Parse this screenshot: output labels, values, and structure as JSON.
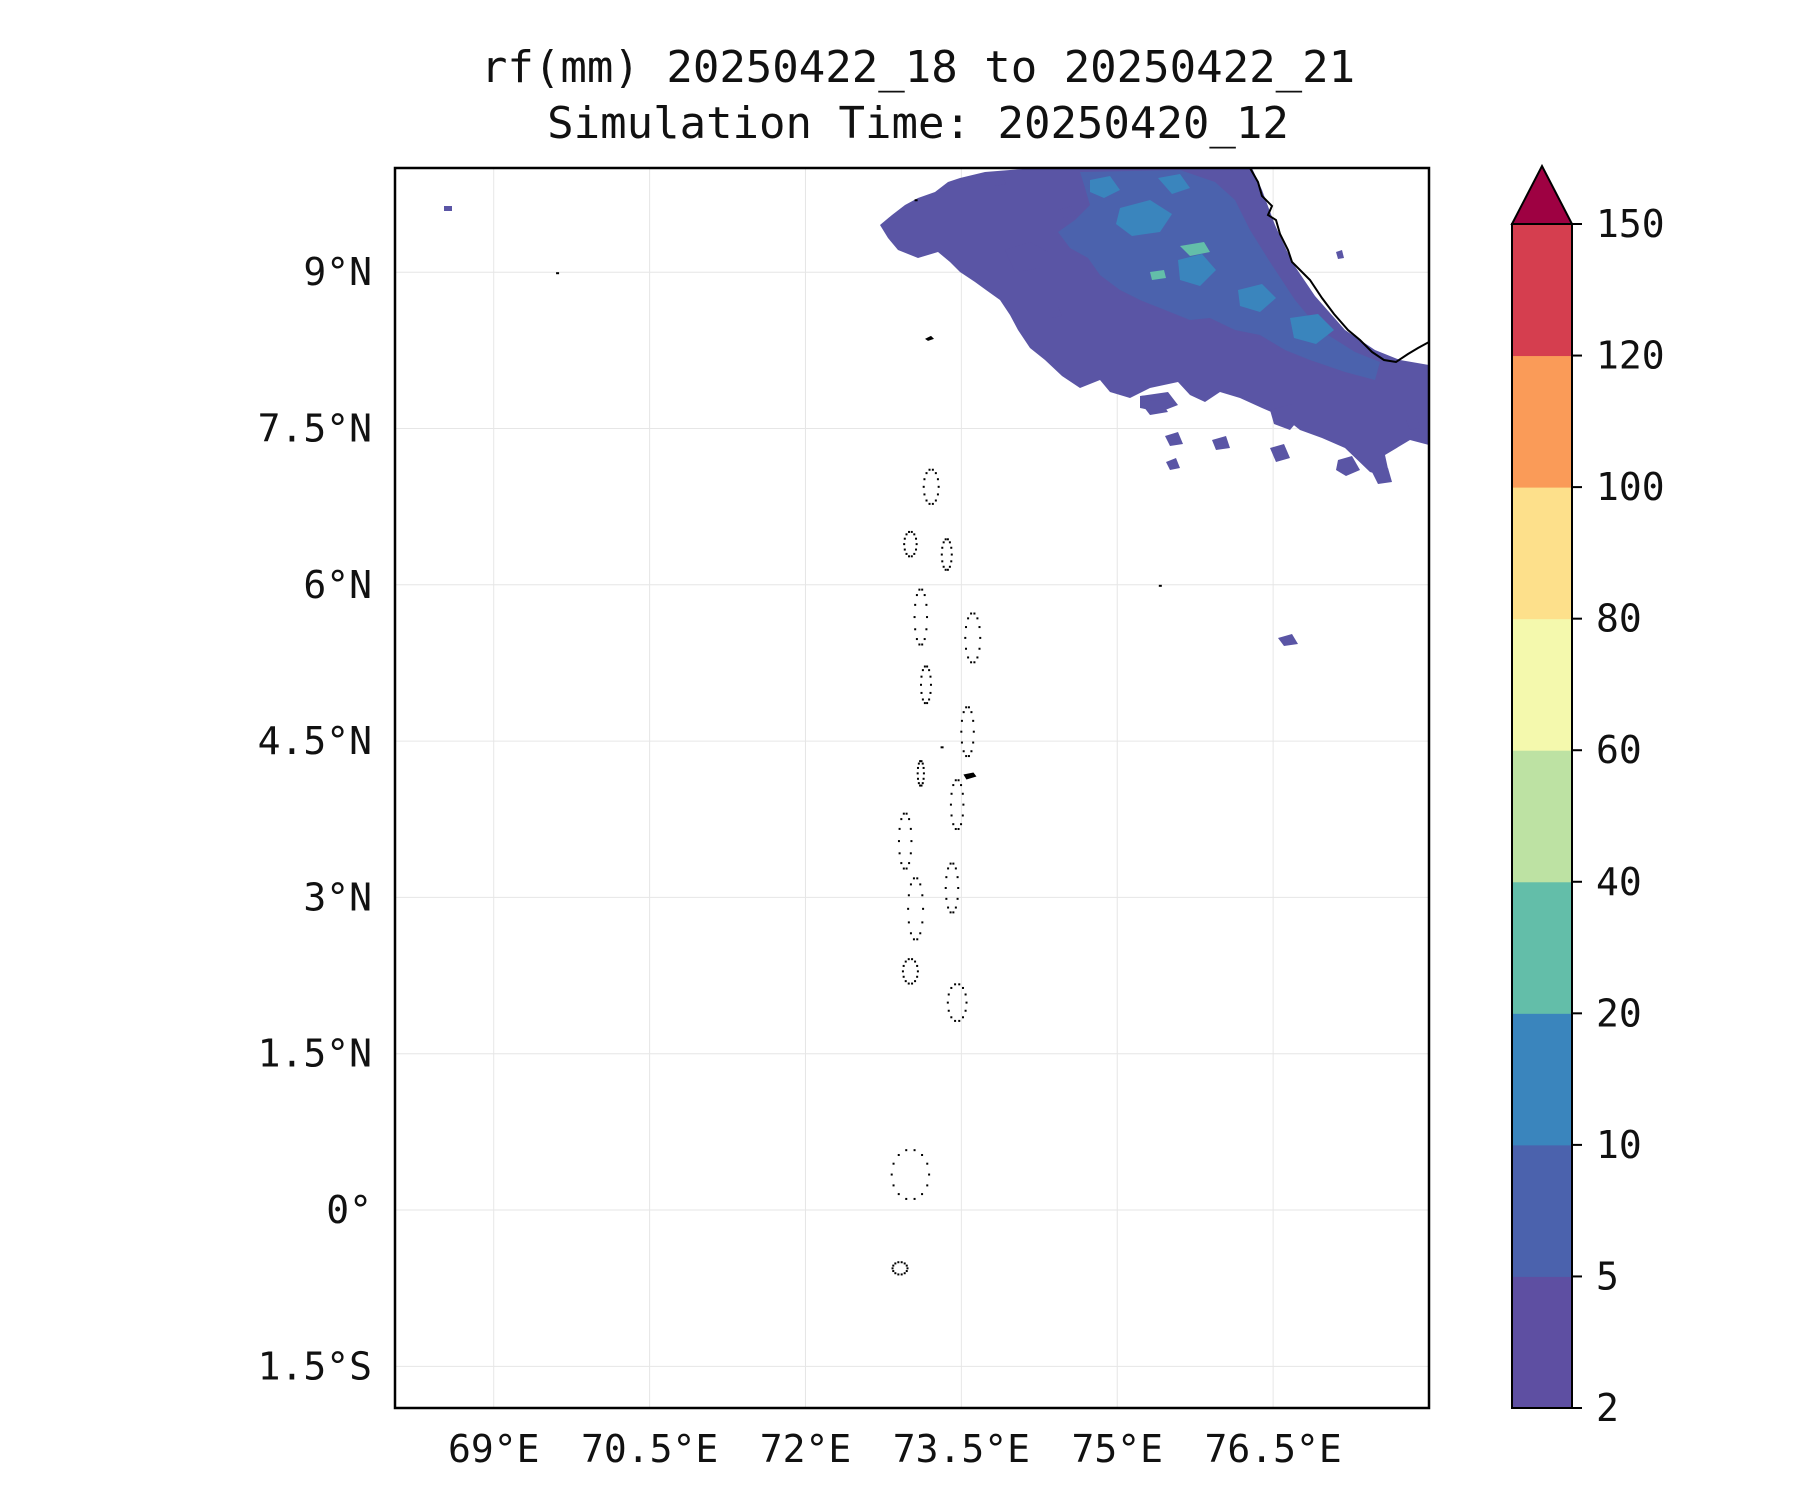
{
  "title": {
    "line1": "rf(mm) 20250422_18 to 20250422_21",
    "line2": "Simulation Time: 20250420_12"
  },
  "map": {
    "lon_range": [
      68.05,
      78.0
    ],
    "lat_range": [
      -1.9,
      10.0
    ],
    "grid": true,
    "lat_ticks": [
      {
        "value": 9,
        "label": "9°N"
      },
      {
        "value": 7.5,
        "label": "7.5°N"
      },
      {
        "value": 6,
        "label": "6°N"
      },
      {
        "value": 4.5,
        "label": "4.5°N"
      },
      {
        "value": 3,
        "label": "3°N"
      },
      {
        "value": 1.5,
        "label": "1.5°N"
      },
      {
        "value": 0,
        "label": "0°"
      },
      {
        "value": -1.5,
        "label": "1.5°S"
      }
    ],
    "lon_ticks": [
      {
        "value": 69,
        "label": "69°E"
      },
      {
        "value": 70.5,
        "label": "70.5°E"
      },
      {
        "value": 72,
        "label": "72°E"
      },
      {
        "value": 73.5,
        "label": "73.5°E"
      },
      {
        "value": 75,
        "label": "75°E"
      },
      {
        "value": 76.5,
        "label": "76.5°E"
      }
    ],
    "rain_region": "southwest India coast (Kerala) and adjoining Arabian Sea",
    "islands": "Lakshadweep and Maldives atolls"
  },
  "colorbar": {
    "levels": [
      2,
      5,
      10,
      20,
      40,
      60,
      80,
      100,
      120,
      150
    ],
    "labels": [
      "2",
      "5",
      "10",
      "20",
      "40",
      "60",
      "80",
      "100",
      "120",
      "150"
    ],
    "colors": [
      "#5e4fa2",
      "#4b62ad",
      "#3a85bd",
      "#63bea9",
      "#bde2a3",
      "#f4f9ad",
      "#fde08b",
      "#fa9b58",
      "#d53e4f"
    ],
    "extend_color": "#9e0142",
    "extend": "max"
  },
  "colors": {
    "rain_light": "#5a55a5",
    "rain_mid": "#3a85bd",
    "rain_high": "#63bea9",
    "coastline": "#000000",
    "grid": "#e6e6e6"
  }
}
